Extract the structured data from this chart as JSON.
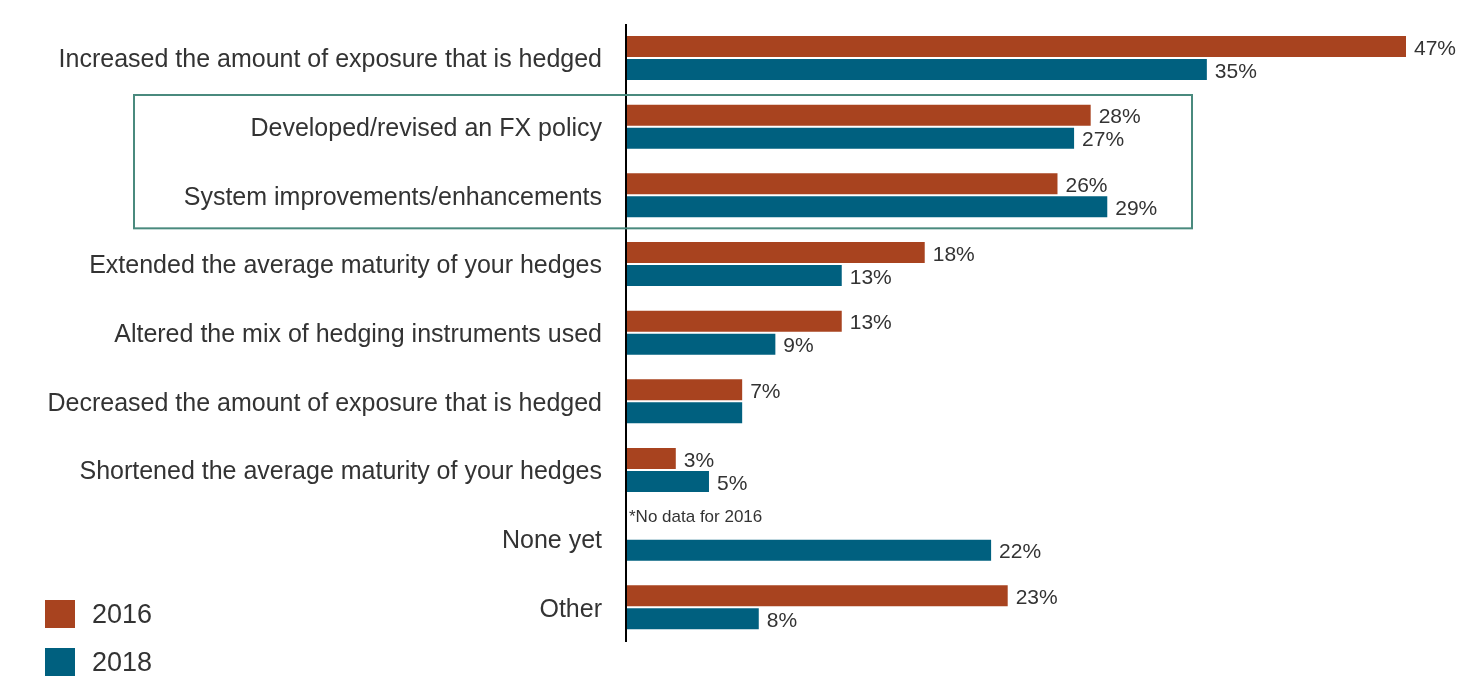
{
  "chart_data": {
    "type": "bar",
    "orientation": "horizontal",
    "categories": [
      "Increased the amount of exposure that is hedged",
      "Developed/revised an FX policy",
      "System improvements/enhancements",
      "Extended the average maturity of your hedges",
      "Altered the mix of hedging instruments used",
      "Decreased the amount of exposure that is hedged",
      "Shortened the average maturity of your hedges",
      "None yet",
      "Other"
    ],
    "series": [
      {
        "name": "2016",
        "color": "#a8431f",
        "values": [
          47,
          28,
          26,
          18,
          13,
          7,
          3,
          null,
          23
        ],
        "value_labels": [
          "47%",
          "28%",
          "26%",
          "18%",
          "13%",
          "7%",
          "3%",
          null,
          "23%"
        ]
      },
      {
        "name": "2018",
        "color": "#00607f",
        "values": [
          35,
          27,
          29,
          13,
          9,
          7,
          5,
          22,
          8
        ],
        "value_labels": [
          "35%",
          "27%",
          "29%",
          "13%",
          "9%",
          null,
          "5%",
          "22%",
          "8%"
        ]
      }
    ],
    "tick_labels": "y",
    "legend": "bottom left",
    "annotations": [
      "*No data for 2016"
    ]
  }
}
